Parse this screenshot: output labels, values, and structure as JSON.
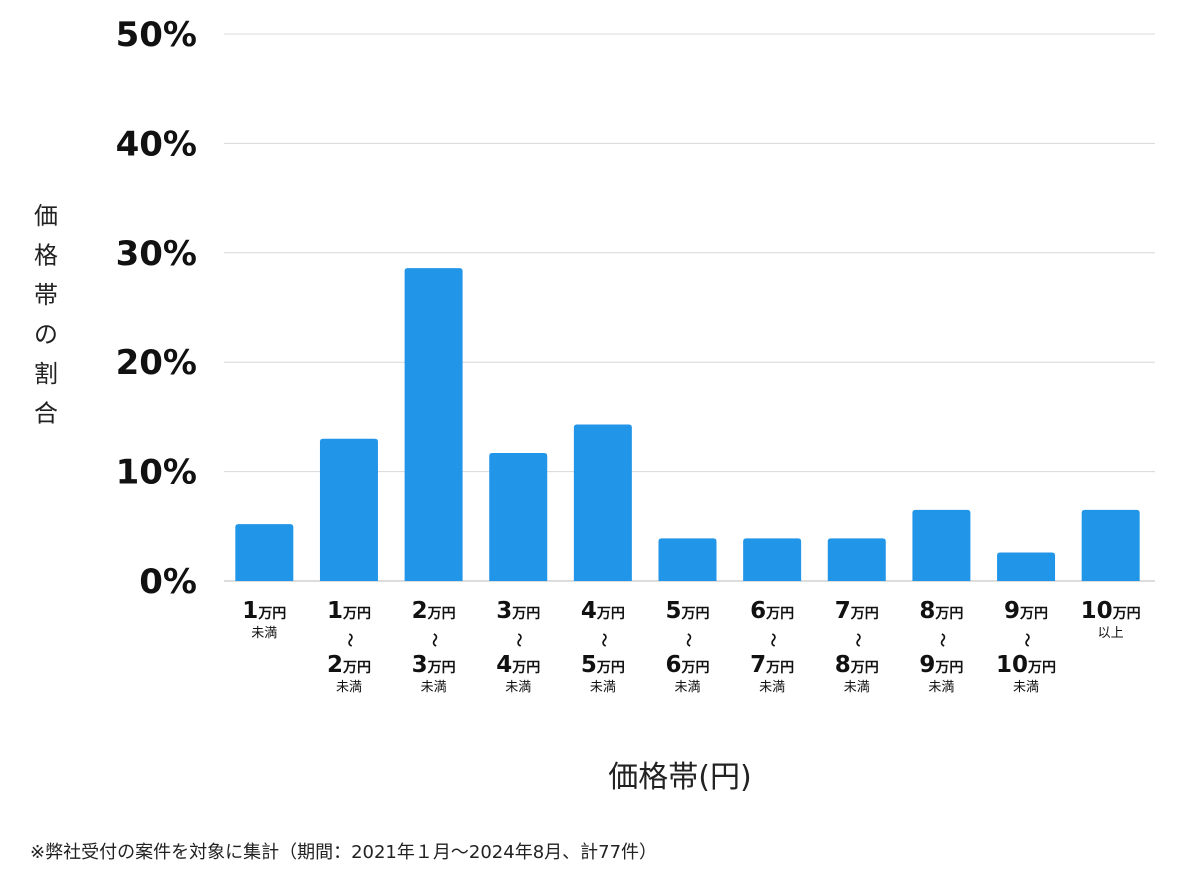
{
  "chart_data": {
    "type": "bar",
    "title": "",
    "xlabel": "価格帯(円)",
    "ylabel": "価格帯の割合",
    "ylim": [
      0,
      50
    ],
    "yticks": [
      "0%",
      "10%",
      "20%",
      "30%",
      "40%",
      "50%"
    ],
    "grid": true,
    "bar_color": "#2196E8",
    "categories": [
      {
        "from": "1",
        "to": "",
        "suffix": "未満"
      },
      {
        "from": "1",
        "to": "2",
        "suffix": "未満"
      },
      {
        "from": "2",
        "to": "3",
        "suffix": "未満"
      },
      {
        "from": "3",
        "to": "4",
        "suffix": "未満"
      },
      {
        "from": "4",
        "to": "5",
        "suffix": "未満"
      },
      {
        "from": "5",
        "to": "6",
        "suffix": "未満"
      },
      {
        "from": "6",
        "to": "7",
        "suffix": "未満"
      },
      {
        "from": "7",
        "to": "8",
        "suffix": "未満"
      },
      {
        "from": "8",
        "to": "9",
        "suffix": "未満"
      },
      {
        "from": "9",
        "to": "10",
        "suffix": "未満"
      },
      {
        "from": "10",
        "to": "",
        "suffix": "以上"
      }
    ],
    "unit": "万円",
    "range_mark": "〜",
    "values": [
      5.2,
      13.0,
      28.6,
      11.7,
      14.3,
      3.9,
      3.9,
      3.9,
      6.5,
      2.6,
      6.5
    ]
  },
  "footnote": "※弊社受付の案件を対象に集計（期間：2021年１月〜2024年8月、計77件）"
}
